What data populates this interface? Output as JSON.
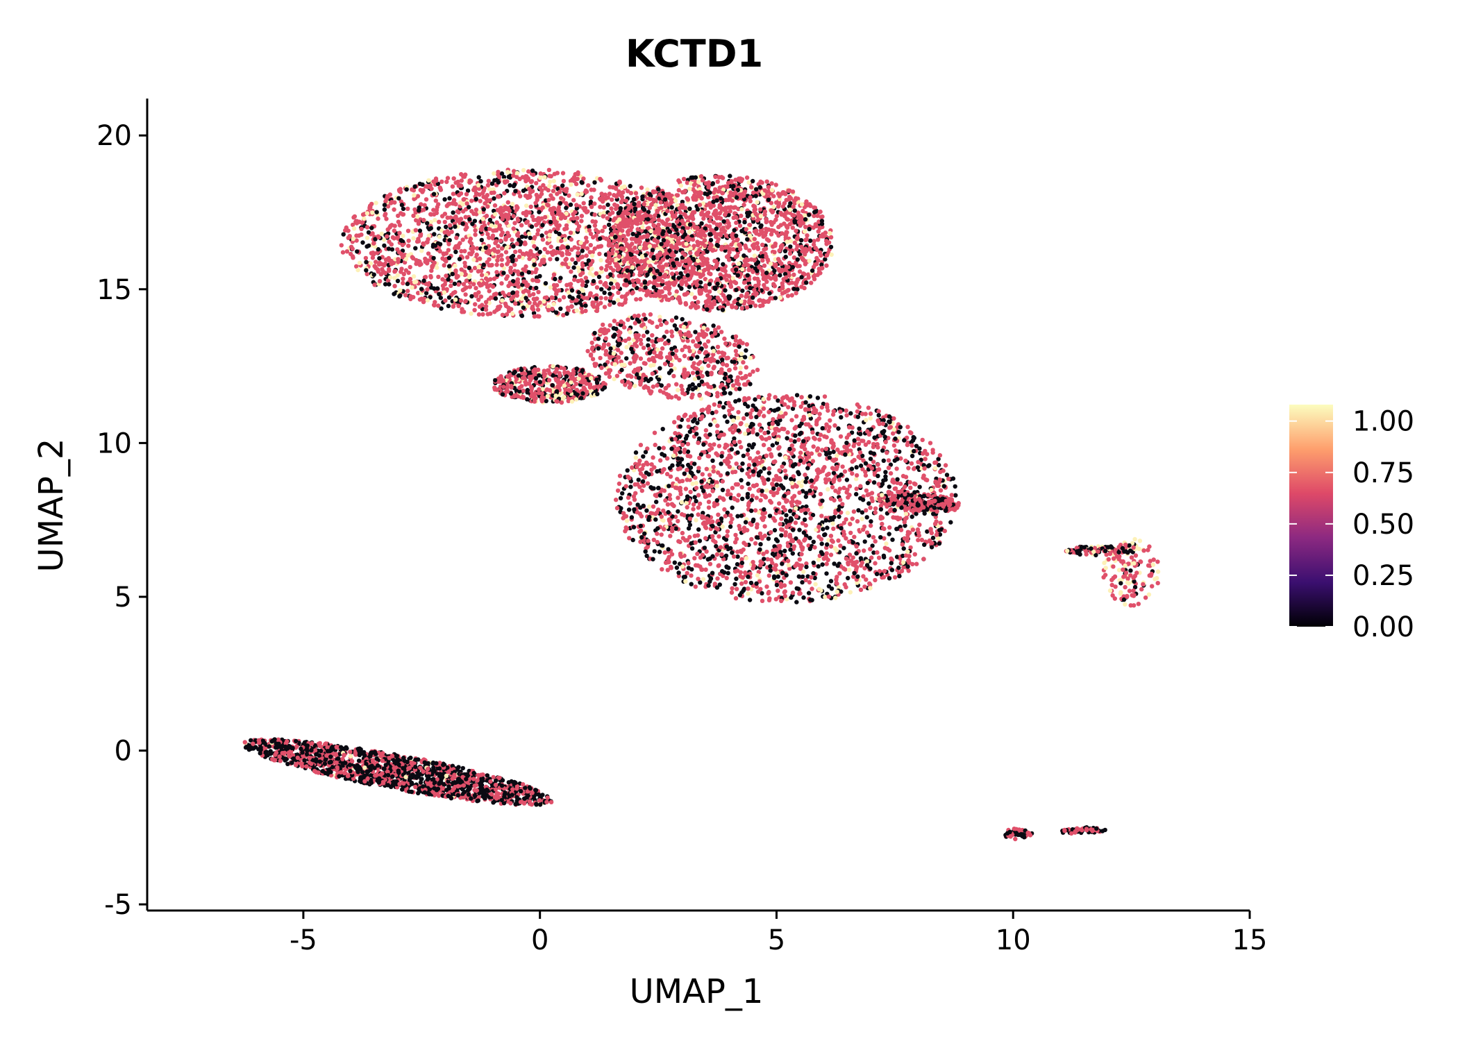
{
  "chart_data": {
    "type": "scatter",
    "title": "KCTD1",
    "xlabel": "UMAP_1",
    "ylabel": "UMAP_2",
    "xlim": [
      -8.3,
      15
    ],
    "ylim": [
      -5.2,
      21.2
    ],
    "x_ticks": [
      -5,
      0,
      5,
      10,
      15
    ],
    "x_tick_labels": [
      "-5",
      "0",
      "5",
      "10",
      "15"
    ],
    "y_ticks": [
      -5,
      0,
      5,
      10,
      15,
      20
    ],
    "y_tick_labels": [
      "-5",
      "0",
      "5",
      "10",
      "15",
      "20"
    ],
    "grid": false,
    "colorbar": {
      "label": "",
      "range": [
        0,
        1.08
      ],
      "ticks": [
        0,
        0.25,
        0.5,
        0.75,
        1.0
      ],
      "tick_labels": [
        "0.00",
        "0.25",
        "0.50",
        "0.75",
        "1.00"
      ],
      "colormap": [
        "#000004",
        "#3b0f70",
        "#8c2981",
        "#de4968",
        "#fe9f6d",
        "#fcfdbf"
      ]
    },
    "clusters": [
      {
        "name": "top-left cluster",
        "center": [
          -0.3,
          16.5
        ],
        "radius": [
          3.9,
          2.4
        ],
        "angle": 0,
        "density": 1.0,
        "fractions": [
          0.22,
          0.66,
          0.12
        ]
      },
      {
        "name": "upper-right lobe",
        "center": [
          3.8,
          16.5
        ],
        "radius": [
          2.4,
          2.2
        ],
        "angle": 0,
        "density": 0.8,
        "fractions": [
          0.2,
          0.72,
          0.08
        ]
      },
      {
        "name": "bridge",
        "center": [
          2.8,
          12.8
        ],
        "radius": [
          1.9,
          1.3
        ],
        "angle": -20,
        "density": 0.25,
        "fractions": [
          0.2,
          0.72,
          0.08
        ]
      },
      {
        "name": "small patch",
        "center": [
          0.2,
          11.9
        ],
        "radius": [
          1.2,
          0.6
        ],
        "angle": 0,
        "density": 0.2,
        "fractions": [
          0.25,
          0.65,
          0.1
        ]
      },
      {
        "name": "middle cluster",
        "center": [
          5.2,
          8.2
        ],
        "radius": [
          3.6,
          3.4
        ],
        "angle": 0,
        "density": 1.0,
        "fractions": [
          0.33,
          0.61,
          0.06
        ]
      },
      {
        "name": "middle tail",
        "center": [
          8.0,
          8.1
        ],
        "radius": [
          0.9,
          0.3
        ],
        "angle": -10,
        "density": 0.12,
        "fractions": [
          0.4,
          0.55,
          0.05
        ]
      },
      {
        "name": "bottom-left strip",
        "center": [
          -3.0,
          -0.7
        ],
        "radius": [
          3.4,
          0.55
        ],
        "angle": -16,
        "density": 0.7,
        "fractions": [
          0.55,
          0.43,
          0.02
        ]
      },
      {
        "name": "right small cluster",
        "center": [
          12.5,
          5.8
        ],
        "radius": [
          0.6,
          1.1
        ],
        "angle": 0,
        "density": 0.06,
        "fractions": [
          0.1,
          0.6,
          0.3
        ]
      },
      {
        "name": "right cluster tail",
        "center": [
          11.8,
          6.5
        ],
        "radius": [
          0.7,
          0.15
        ],
        "angle": 0,
        "density": 0.04,
        "fractions": [
          0.4,
          0.5,
          0.1
        ]
      },
      {
        "name": "tiny cluster a",
        "center": [
          10.1,
          -2.7
        ],
        "radius": [
          0.3,
          0.18
        ],
        "angle": 0,
        "density": 0.02,
        "fractions": [
          0.6,
          0.4,
          0.0
        ]
      },
      {
        "name": "tiny cluster b",
        "center": [
          11.5,
          -2.6
        ],
        "radius": [
          0.5,
          0.1
        ],
        "angle": 5,
        "density": 0.02,
        "fractions": [
          0.6,
          0.4,
          0.0
        ]
      }
    ]
  }
}
